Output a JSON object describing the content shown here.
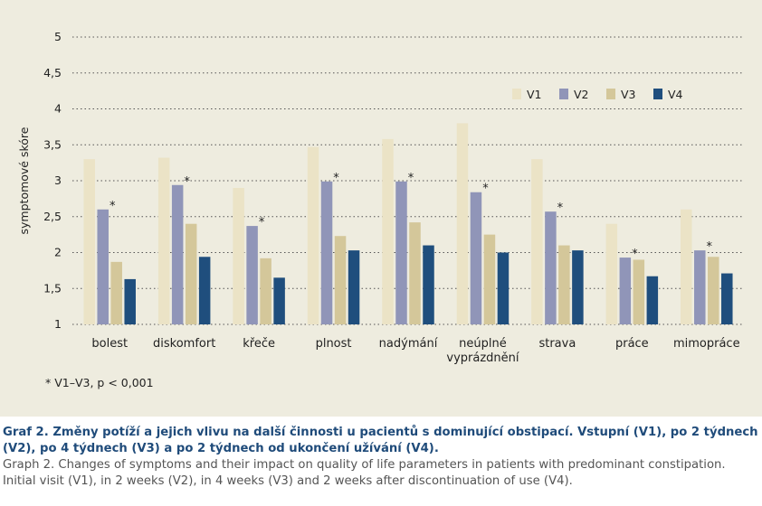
{
  "chart_data": {
    "type": "bar",
    "title": "",
    "xlabel": "",
    "ylabel": "symptomové skóre",
    "ylim": [
      1,
      5
    ],
    "yticks": [
      "1",
      "1,5",
      "2",
      "2,5",
      "3",
      "3,5",
      "4",
      "4,5",
      "5"
    ],
    "grid": "horizontal dotted",
    "legend_position": "top-right",
    "categories": [
      "bolest",
      "diskomfort",
      "křeče",
      "plnost",
      "nadýmání",
      "neúplné vyprázdnění",
      "strava",
      "práce",
      "mimopráce"
    ],
    "category_labels": [
      [
        "bolest"
      ],
      [
        "diskomfort"
      ],
      [
        "křeče"
      ],
      [
        "plnost"
      ],
      [
        "nadýmání"
      ],
      [
        "neúplné",
        "vyprázdnění"
      ],
      [
        "strava"
      ],
      [
        "práce"
      ],
      [
        "mimopráce"
      ]
    ],
    "series": [
      {
        "name": "V1",
        "color": "#ebe3c6",
        "values": [
          3.3,
          3.32,
          2.9,
          3.47,
          3.58,
          3.8,
          3.3,
          2.4,
          2.6
        ]
      },
      {
        "name": "V2",
        "color": "#9095b8",
        "values": [
          2.6,
          2.94,
          2.37,
          2.99,
          2.99,
          2.84,
          2.57,
          1.93,
          2.03
        ]
      },
      {
        "name": "V3",
        "color": "#d4c79a",
        "values": [
          1.87,
          2.4,
          1.92,
          2.23,
          2.42,
          2.25,
          2.1,
          1.9,
          1.94
        ]
      },
      {
        "name": "V4",
        "color": "#1f4e7d",
        "values": [
          1.63,
          1.94,
          1.65,
          2.03,
          2.1,
          2.0,
          2.03,
          1.67,
          1.71
        ]
      }
    ],
    "significance_marker": "*",
    "significance_marks": [
      true,
      true,
      true,
      true,
      true,
      true,
      true,
      true,
      true
    ]
  },
  "footnote": "* V1–V3, p < 0,001",
  "caption": {
    "czech": "Graf 2. Změny potíží a jejich vlivu na další činnosti u pacientů s dominující obstipací. Vstupní (V1), po 2 týdnech (V2), po 4 týdnech (V3) a po 2 týdnech od ukončení užívání (V4).",
    "english": "Graph 2. Changes of symptoms and their impact on quality of life parameters in patients with predominant constipation. Initial visit (V1), in 2 weeks (V2), in 4 weeks (V3) and 2 weeks after discontinuation of use (V4)."
  }
}
